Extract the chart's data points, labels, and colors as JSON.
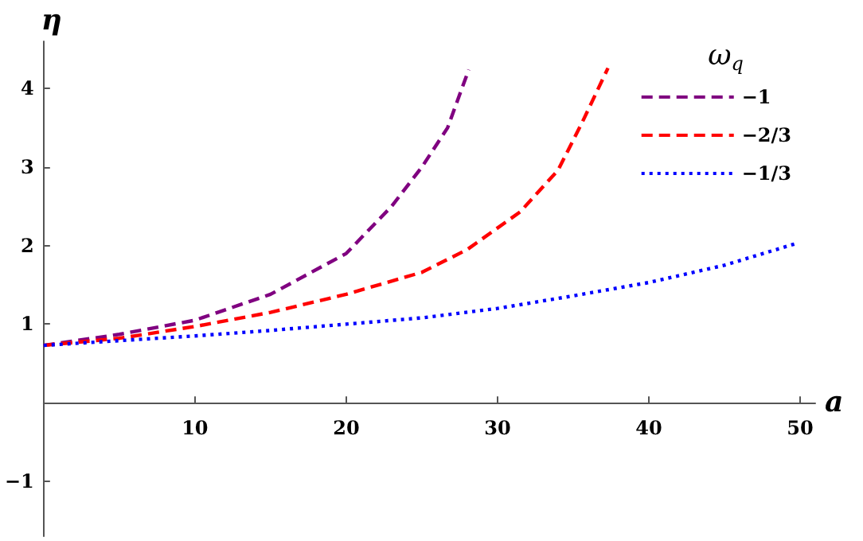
{
  "chart_data": {
    "type": "line",
    "xlabel": "a",
    "ylabel": "η",
    "legend_title": "ω$_{q}$",
    "legend": "top right",
    "marker": "none",
    "grid": false,
    "xlim": [
      0,
      51
    ],
    "ylim": [
      -1.7,
      4.6
    ],
    "xticks": [
      10,
      20,
      30,
      40,
      50
    ],
    "yticks": [
      -1,
      1,
      2,
      3,
      4
    ],
    "series": [
      {
        "name": "−1",
        "color": "#800080",
        "line_style": "dashed",
        "x": [
          0,
          5,
          10,
          15,
          20,
          23,
          25,
          26.7,
          28.1
        ],
        "values": [
          0.73,
          0.87,
          1.05,
          1.38,
          1.9,
          2.5,
          3.0,
          3.5,
          4.24
        ]
      },
      {
        "name": "−2/3",
        "color": "#ff0000",
        "line_style": "dashed",
        "x": [
          0,
          5,
          10,
          15,
          20,
          25,
          28,
          31.5,
          34,
          35.6,
          37.3
        ],
        "values": [
          0.73,
          0.82,
          0.97,
          1.15,
          1.38,
          1.66,
          1.95,
          2.43,
          2.96,
          3.57,
          4.26
        ]
      },
      {
        "name": "−1/3",
        "color": "#0000ff",
        "line_style": "dotted",
        "x": [
          0,
          5,
          10,
          15,
          20,
          25,
          30,
          35,
          40,
          45,
          49.8
        ],
        "values": [
          0.73,
          0.79,
          0.85,
          0.92,
          1.0,
          1.08,
          1.2,
          1.36,
          1.53,
          1.75,
          2.03
        ]
      }
    ]
  }
}
